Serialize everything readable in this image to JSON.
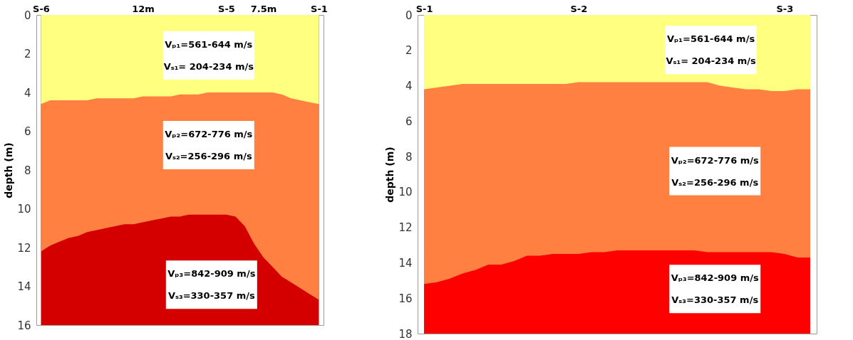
{
  "chart_data": [
    {
      "type": "area",
      "ylabel": "depth (m)",
      "ylim": [
        16,
        0
      ],
      "yticks": [
        0,
        2,
        4,
        6,
        8,
        10,
        12,
        14,
        16
      ],
      "categories": [
        "S-6",
        null,
        null,
        null,
        null,
        null,
        null,
        null,
        null,
        null,
        null,
        "12m",
        null,
        null,
        null,
        null,
        null,
        null,
        null,
        null,
        "S-5",
        null,
        null,
        null,
        "7.5m",
        null,
        null,
        null,
        null,
        null,
        "S-1"
      ],
      "grid": false,
      "series": [
        {
          "color": "#d40000",
          "values": [
            16,
            16,
            16,
            16,
            16,
            16,
            16,
            16,
            16,
            16,
            16,
            16,
            16,
            16,
            16,
            16,
            16,
            16,
            16,
            16,
            16,
            16,
            16,
            16,
            16,
            16,
            16,
            16,
            16,
            16,
            16
          ]
        },
        {
          "color": "#ff8040",
          "values": [
            12.2,
            11.9,
            11.7,
            11.5,
            11.4,
            11.2,
            11.1,
            11.0,
            10.9,
            10.8,
            10.8,
            10.7,
            10.6,
            10.5,
            10.4,
            10.4,
            10.3,
            10.3,
            10.3,
            10.3,
            10.3,
            10.4,
            10.9,
            11.8,
            12.5,
            13.0,
            13.5,
            13.8,
            14.1,
            14.4,
            14.7
          ]
        },
        {
          "color": "#ffff80",
          "values": [
            4.6,
            4.4,
            4.4,
            4.4,
            4.4,
            4.4,
            4.3,
            4.3,
            4.3,
            4.3,
            4.3,
            4.2,
            4.2,
            4.2,
            4.2,
            4.1,
            4.1,
            4.1,
            4.0,
            4.0,
            4.0,
            4.0,
            4.0,
            4.0,
            4.0,
            4.0,
            4.1,
            4.3,
            4.4,
            4.5,
            4.6
          ]
        }
      ],
      "annotations": [
        "Vₚ₁=561-644 m/s",
        "Vₛ₁= 204-234 m/s",
        "Vₚ₂=672-776 m/s",
        "Vₛ₂=256-296 m/s",
        "Vₚ₃=842-909 m/s",
        "Vₛ₃=330-357 m/s"
      ]
    },
    {
      "type": "area",
      "ylabel": "depth (m)",
      "ylim": [
        18,
        0
      ],
      "yticks": [
        0,
        2,
        4,
        6,
        8,
        10,
        12,
        14,
        16,
        18
      ],
      "categories": [
        "S-1",
        null,
        null,
        null,
        null,
        null,
        null,
        null,
        null,
        null,
        null,
        null,
        "S-2",
        null,
        null,
        null,
        null,
        null,
        null,
        null,
        null,
        null,
        null,
        null,
        null,
        null,
        null,
        null,
        "S-3",
        null,
        null
      ],
      "grid": false,
      "series": [
        {
          "color": "#ff0000",
          "values": [
            18,
            18,
            18,
            18,
            18,
            18,
            18,
            18,
            18,
            18,
            18,
            18,
            18,
            18,
            18,
            18,
            18,
            18,
            18,
            18,
            18,
            18,
            18,
            18,
            18,
            18,
            18,
            18,
            18,
            18,
            18
          ]
        },
        {
          "color": "#ff8040",
          "values": [
            15.2,
            15.1,
            14.9,
            14.6,
            14.4,
            14.1,
            14.1,
            13.9,
            13.6,
            13.6,
            13.5,
            13.5,
            13.5,
            13.4,
            13.4,
            13.3,
            13.3,
            13.3,
            13.3,
            13.3,
            13.3,
            13.3,
            13.4,
            13.4,
            13.4,
            13.4,
            13.4,
            13.4,
            13.5,
            13.7,
            13.7
          ]
        },
        {
          "color": "#ffff80",
          "values": [
            4.2,
            4.1,
            4.0,
            3.9,
            3.9,
            3.9,
            3.9,
            3.9,
            3.9,
            3.9,
            3.9,
            3.9,
            3.8,
            3.8,
            3.8,
            3.8,
            3.8,
            3.8,
            3.8,
            3.8,
            3.8,
            3.8,
            3.8,
            4.0,
            4.1,
            4.2,
            4.2,
            4.3,
            4.3,
            4.2,
            4.2
          ]
        }
      ],
      "annotations": [
        "Vₚ₁=561-644 m/s",
        "Vₛ₁= 204-234 m/s",
        "Vₚ₂=672-776 m/s",
        "Vₛ₂=256-296 m/s",
        "Vₚ₃=842-909 m/s",
        "Vₛ₃=330-357 m/s"
      ]
    }
  ]
}
